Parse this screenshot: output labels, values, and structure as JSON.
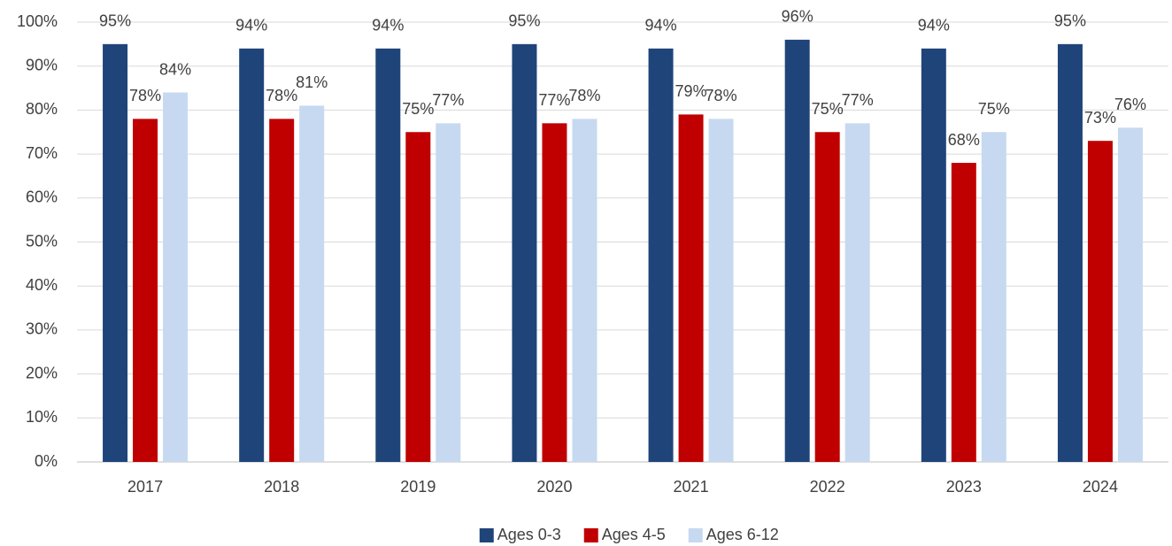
{
  "chart_data": {
    "type": "bar",
    "categories": [
      "2017",
      "2018",
      "2019",
      "2020",
      "2021",
      "2022",
      "2023",
      "2024"
    ],
    "series": [
      {
        "name": "Ages 0-3",
        "color": "#1f4479",
        "values": [
          95,
          94,
          94,
          95,
          94,
          96,
          94,
          95
        ],
        "value_labels": [
          "95%",
          "94%",
          "94%",
          "95%",
          "94%",
          "96%",
          "94%",
          "95%"
        ]
      },
      {
        "name": "Ages 4-5",
        "color": "#c00000",
        "values": [
          78,
          78,
          75,
          77,
          79,
          75,
          68,
          73
        ],
        "value_labels": [
          "78%",
          "78%",
          "75%",
          "77%",
          "79%",
          "75%",
          "68%",
          "73%"
        ]
      },
      {
        "name": "Ages 6-12",
        "color": "#c6d9f0",
        "values": [
          84,
          81,
          77,
          78,
          78,
          77,
          75,
          76
        ],
        "value_labels": [
          "84%",
          "81%",
          "77%",
          "78%",
          "78%",
          "77%",
          "75%",
          "76%"
        ]
      }
    ],
    "ylim": [
      0,
      100
    ],
    "yticks": [
      {
        "value": 0,
        "label": "0%"
      },
      {
        "value": 10,
        "label": "10%"
      },
      {
        "value": 20,
        "label": "20%"
      },
      {
        "value": 30,
        "label": "30%"
      },
      {
        "value": 40,
        "label": "40%"
      },
      {
        "value": 50,
        "label": "50%"
      },
      {
        "value": 60,
        "label": "60%"
      },
      {
        "value": 70,
        "label": "70%"
      },
      {
        "value": 80,
        "label": "80%"
      },
      {
        "value": 90,
        "label": "90%"
      },
      {
        "value": 100,
        "label": "100%"
      }
    ],
    "grid": true,
    "legend": "bottom"
  }
}
